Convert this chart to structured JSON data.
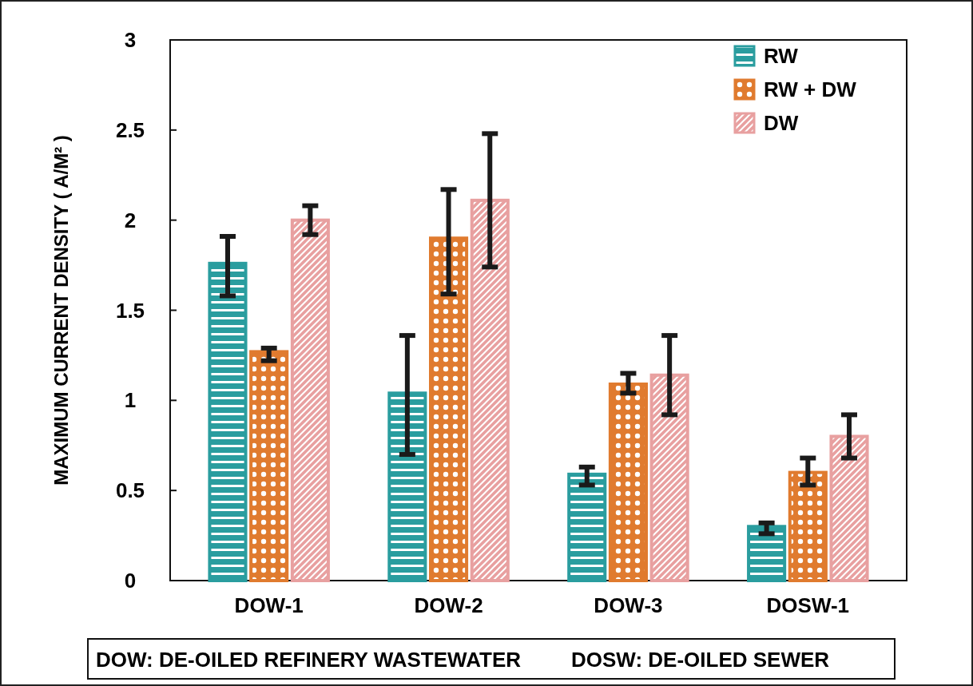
{
  "chart_data": {
    "type": "bar",
    "ylabel": "MAXIMUM CURRENT DENSITY ( A/M² )",
    "categories": [
      "DOW-1",
      "DOW-2",
      "DOW-3",
      "DOSW-1"
    ],
    "series": [
      {
        "name": "RW",
        "color": "#2a9d9f",
        "values": [
          1.76,
          1.04,
          0.59,
          0.3
        ],
        "errors": [
          [
            1.58,
            1.91
          ],
          [
            0.7,
            1.36
          ],
          [
            0.53,
            0.63
          ],
          [
            0.26,
            0.32
          ]
        ]
      },
      {
        "name": "RW + DW",
        "color": "#e07b2f",
        "values": [
          1.27,
          1.9,
          1.09,
          0.6
        ],
        "errors": [
          [
            1.22,
            1.29
          ],
          [
            1.59,
            2.17
          ],
          [
            1.04,
            1.15
          ],
          [
            0.53,
            0.68
          ]
        ]
      },
      {
        "name": "DW",
        "color": "#e8a0a0",
        "values": [
          2.0,
          2.11,
          1.14,
          0.8
        ],
        "errors": [
          [
            1.92,
            2.08
          ],
          [
            1.74,
            2.48
          ],
          [
            0.92,
            1.36
          ],
          [
            0.68,
            0.92
          ]
        ]
      }
    ],
    "ylim": [
      0,
      3
    ],
    "yticks": [
      0,
      0.5,
      1,
      1.5,
      2,
      2.5,
      3
    ],
    "legend": "top right",
    "grid": false,
    "annotations": [
      "DOW: DE-OILED REFINERY WASTEWATER",
      "DOSW: DE-OILED SEWER"
    ]
  }
}
